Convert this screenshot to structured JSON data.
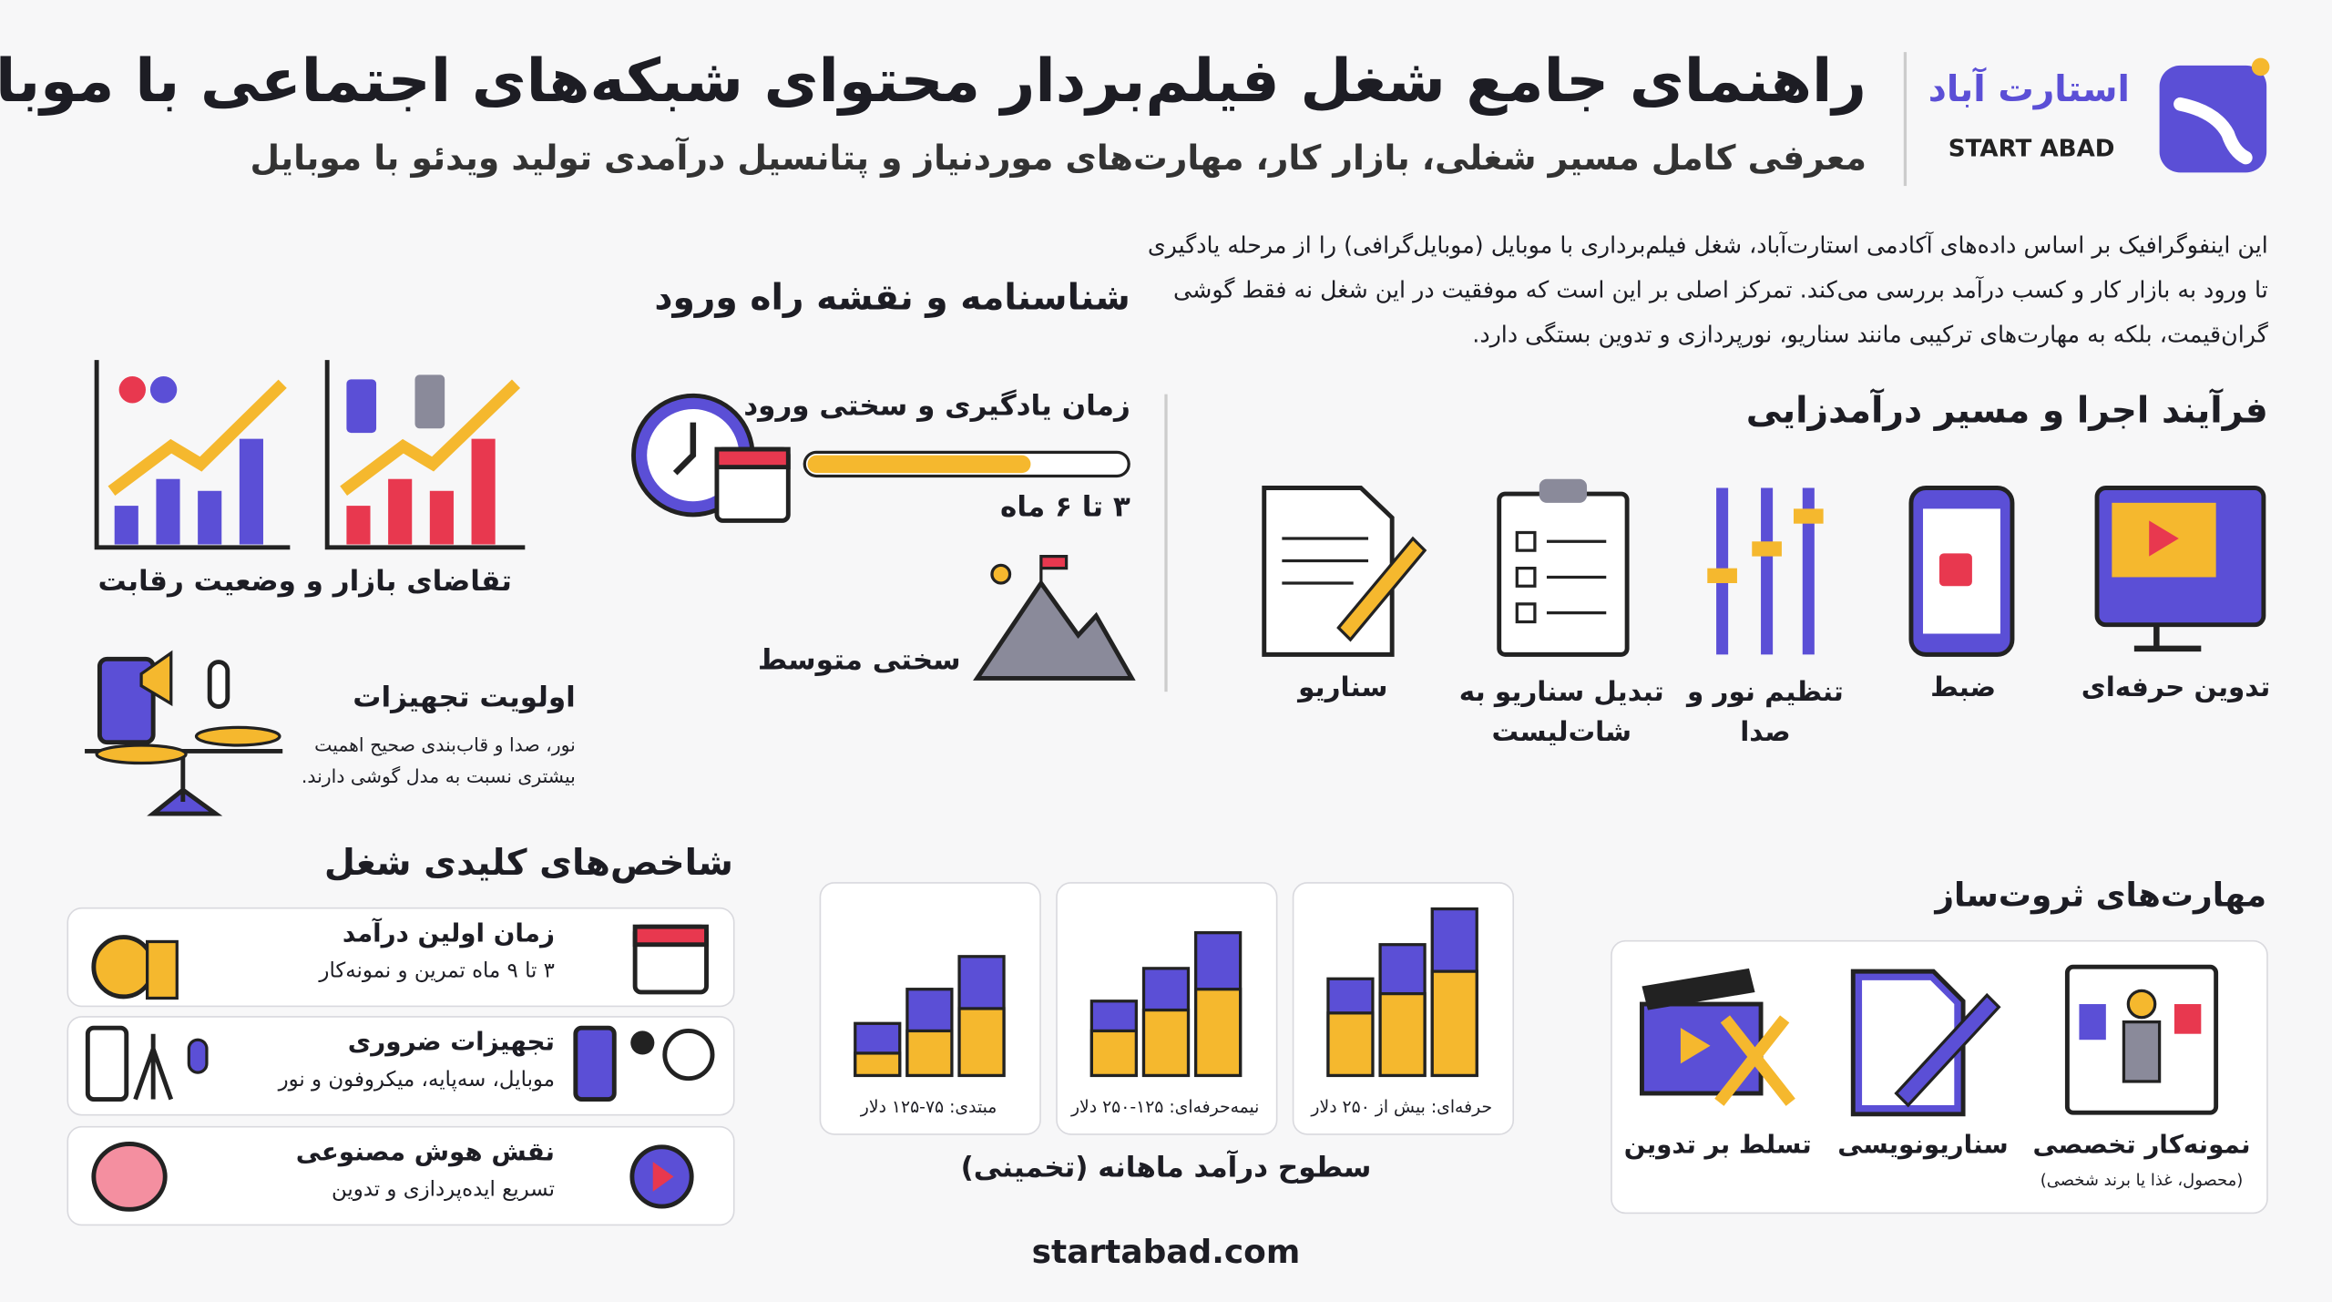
{
  "header": {
    "title": "راهنمای جامع شغل فیلم‌بردار محتوای شبکه‌های اجتماعی با موبایل",
    "subtitle": "معرفی کامل مسیر شغلی، بازار کار، مهارت‌های موردنیاز و پتانسیل درآمدی تولید ویدئو با موبایل",
    "brand_fa": "استارت آباد",
    "brand_en": "START ABAD"
  },
  "intro": "این اینفوگرافیک بر اساس داده‌های آکادمی استارت‌آباد، شغل فیلم‌برداری با موبایل (موبایل‌گرافی) را از مرحله یادگیری تا ورود به بازار کار و کسب درآمد بررسی می‌کند. تمرکز اصلی بر این است که موفقیت در این شغل نه فقط گوشی گران‌قیمت، بلکه به مهارت‌های ترکیبی مانند سناریو، نورپردازی و تدوین بستگی دارد.",
  "roadmap": {
    "title": "شناسنامه و نقشه راه ورود",
    "learning_title": "زمان یادگیری و سختی ورود",
    "learning_value": "۳ تا ۶ ماه",
    "difficulty": "سختی متوسط",
    "market": "تقاضای بازار و وضعیت رقابت",
    "equipment_title": "اولویت تجهیزات",
    "equipment_text": "نور، صدا و قاب‌بندی صحیح اهمیت بیشتری نسبت به مدل گوشی دارند."
  },
  "process": {
    "title": "فرآیند اجرا و مسیر درآمدزایی",
    "steps": [
      "تدوین حرفه‌ای",
      "ضبط",
      "تنظیم نور و صدا",
      "تبدیل سناریو به شات‌لیست",
      "سناریو"
    ]
  },
  "kpis": {
    "title": "شاخص‌های کلیدی شغل",
    "items": [
      {
        "title": "زمان اولین درآمد",
        "text": "۳ تا ۹ ماه تمرین و نمونه‌کار"
      },
      {
        "title": "تجهیزات ضروری",
        "text": "موبایل، سه‌پایه، میکروفون و نور"
      },
      {
        "title": "نقش هوش مصنوعی",
        "text": "تسریع ایده‌پردازی و تدوین"
      }
    ]
  },
  "income": {
    "title": "سطوح درآمد ماهانه (تخمینی)",
    "levels": [
      "حرفه‌ای: بیش از ۲۵۰ دلار",
      "نیمه‌حرفه‌ای: ۱۲۵-۲۵۰ دلار",
      "مبتدی: ۷۵-۱۲۵ دلار"
    ]
  },
  "skills": {
    "title": "مهارت‌های ثروت‌ساز",
    "items": [
      {
        "label": "نمونه‌کار تخصصی",
        "note": "(محصول، غذا یا برند شخصی)"
      },
      {
        "label": "سناریونویسی"
      },
      {
        "label": "تسلط بر تدوین"
      }
    ]
  },
  "footer": "startabad.com"
}
